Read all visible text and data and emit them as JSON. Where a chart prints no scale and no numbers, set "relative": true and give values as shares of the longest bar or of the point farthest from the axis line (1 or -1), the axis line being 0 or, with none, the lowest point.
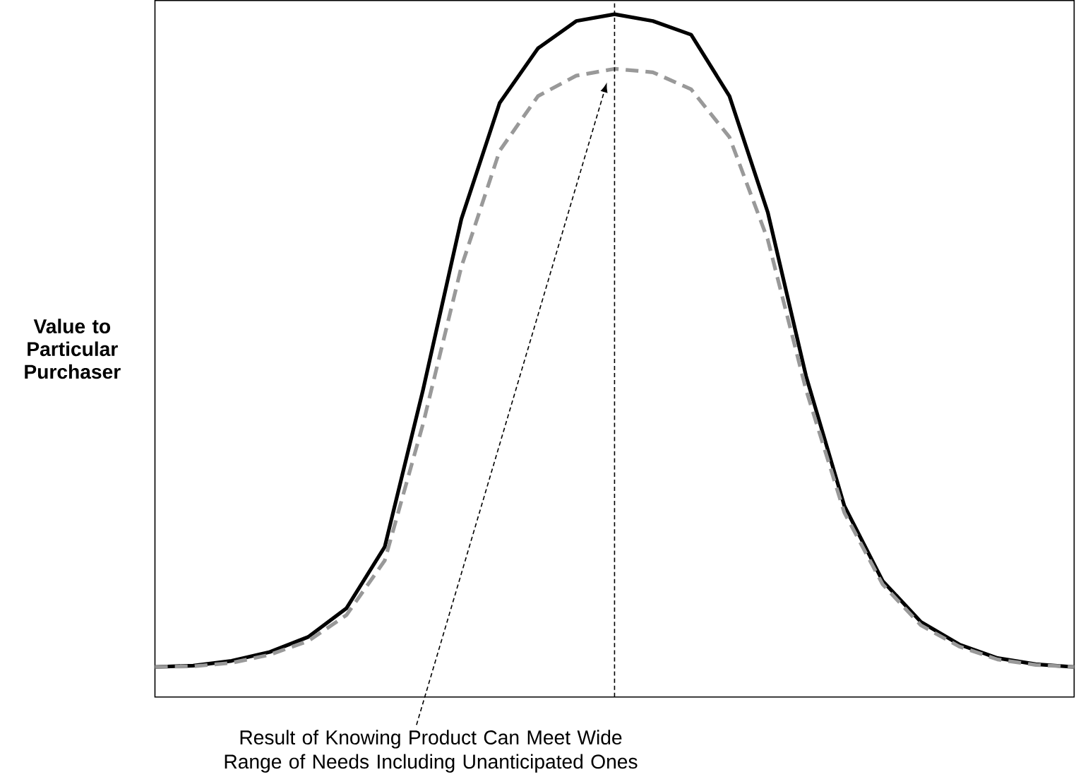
{
  "chart_data": {
    "type": "line",
    "relative": true,
    "ylabel": "Value to Particular Purchaser",
    "categories": [
      null,
      null,
      null,
      null,
      null,
      null,
      null,
      null,
      null,
      null,
      null,
      null,
      null,
      null,
      null,
      null,
      null,
      null,
      null,
      null,
      null,
      null,
      null,
      null,
      null
    ],
    "series": [
      {
        "color": "#000000",
        "line_style": "solid",
        "values": [
          0.044,
          0.046,
          0.053,
          0.066,
          0.088,
          0.13,
          0.22,
          0.45,
          0.7,
          0.87,
          0.95,
          0.99,
          1.0,
          0.99,
          0.97,
          0.88,
          0.71,
          0.47,
          0.28,
          0.17,
          0.11,
          0.077,
          0.057,
          0.048,
          0.044
        ]
      },
      {
        "color": "#999999",
        "line_style": "dashed",
        "values": [
          0.044,
          0.045,
          0.05,
          0.062,
          0.082,
          0.12,
          0.2,
          0.4,
          0.63,
          0.8,
          0.88,
          0.91,
          0.92,
          0.915,
          0.89,
          0.82,
          0.67,
          0.45,
          0.27,
          0.165,
          0.105,
          0.074,
          0.055,
          0.047,
          0.044
        ]
      }
    ],
    "annotations": [
      "Result of Knowing Product Can Meet Wide Range of Needs Including Unanticipated Ones"
    ]
  }
}
